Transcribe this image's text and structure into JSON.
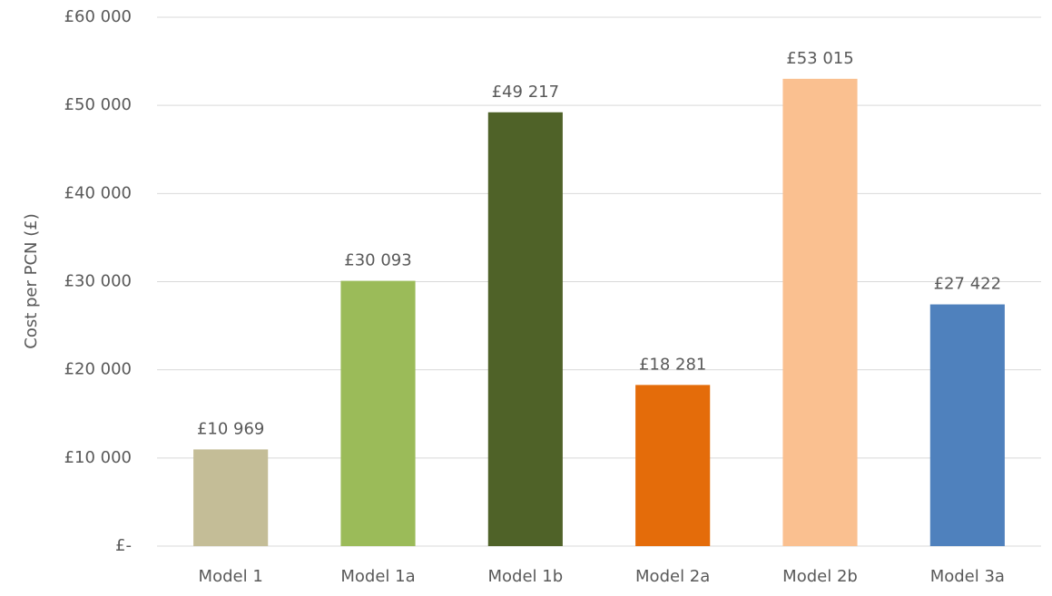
{
  "chart_data": {
    "type": "bar",
    "y_label": "Cost per PCN (£)",
    "categories": [
      "Model 1",
      "Model 1a",
      "Model 1b",
      "Model 2a",
      "Model 2b",
      "Model 3a"
    ],
    "values": [
      10969,
      30093,
      49217,
      18281,
      53015,
      27422
    ],
    "value_labels": [
      "£10 969",
      "£30 093",
      "£49 217",
      "£18 281",
      "£53 015",
      "£27 422"
    ],
    "colors": [
      "#c4bd97",
      "#9bbb59",
      "#4f6228",
      "#e46c0a",
      "#fac090",
      "#4f81bd"
    ],
    "ylim": [
      0,
      60000
    ],
    "yticks": [
      {
        "value": 0,
        "label": "£-"
      },
      {
        "value": 10000,
        "label": "£10 000"
      },
      {
        "value": 20000,
        "label": "£20 000"
      },
      {
        "value": 30000,
        "label": "£30 000"
      },
      {
        "value": 40000,
        "label": "£40 000"
      },
      {
        "value": 50000,
        "label": "£50 000"
      },
      {
        "value": 60000,
        "label": "£60 000"
      }
    ],
    "grid": true
  }
}
